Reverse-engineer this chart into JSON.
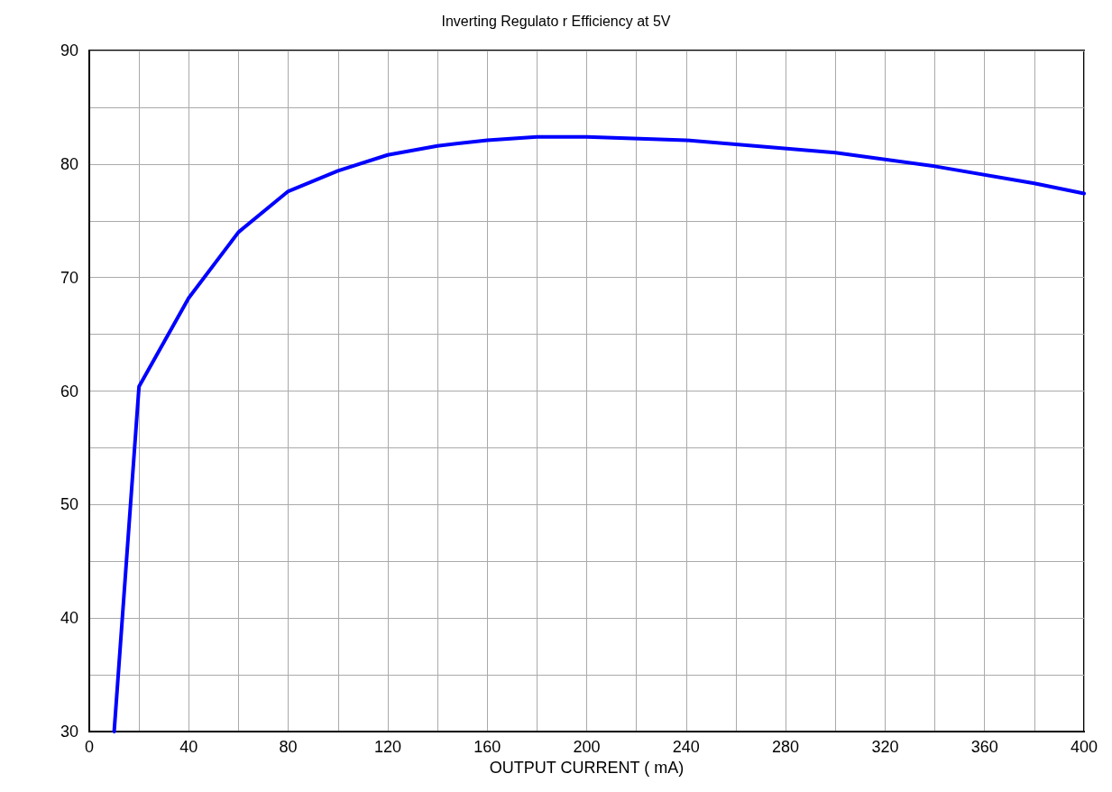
{
  "chart_data": {
    "type": "line",
    "title": "Inverting Regulato r Efficiency at 5V",
    "xlabel": "OUTPUT CURRENT ( mA)",
    "x": [
      10,
      20,
      40,
      60,
      80,
      100,
      120,
      140,
      160,
      180,
      200,
      240,
      300,
      340,
      380,
      400
    ],
    "series": [
      {
        "color": "#0000ff",
        "values": [
          30,
          60.4,
          68.2,
          74,
          77.6,
          79.4,
          80.8,
          81.6,
          82.1,
          82.4,
          82.4,
          82.1,
          81,
          79.8,
          78.3,
          77.4
        ]
      }
    ],
    "xlim": [
      0,
      400
    ],
    "xticks": [
      0,
      {
        "value": 20,
        "label": null
      },
      40,
      {
        "value": 60,
        "label": null
      },
      80,
      {
        "value": 100,
        "label": null
      },
      120,
      {
        "value": 140,
        "label": null
      },
      160,
      {
        "value": 180,
        "label": null
      },
      200,
      {
        "value": 220,
        "label": null
      },
      240,
      {
        "value": 260,
        "label": null
      },
      280,
      {
        "value": 300,
        "label": null
      },
      320,
      {
        "value": 340,
        "label": null
      },
      360,
      {
        "value": 380,
        "label": null
      },
      400
    ],
    "ylim": [
      30,
      90
    ],
    "yticks": [
      30,
      {
        "value": 35,
        "label": null
      },
      40,
      {
        "value": 45,
        "label": null
      },
      50,
      {
        "value": 55,
        "label": null
      },
      60,
      {
        "value": 65,
        "label": null
      },
      70,
      {
        "value": 75,
        "label": null
      },
      80,
      {
        "value": 85,
        "label": null
      },
      90
    ],
    "grid": true,
    "marker": "none",
    "line_style": "solid"
  }
}
